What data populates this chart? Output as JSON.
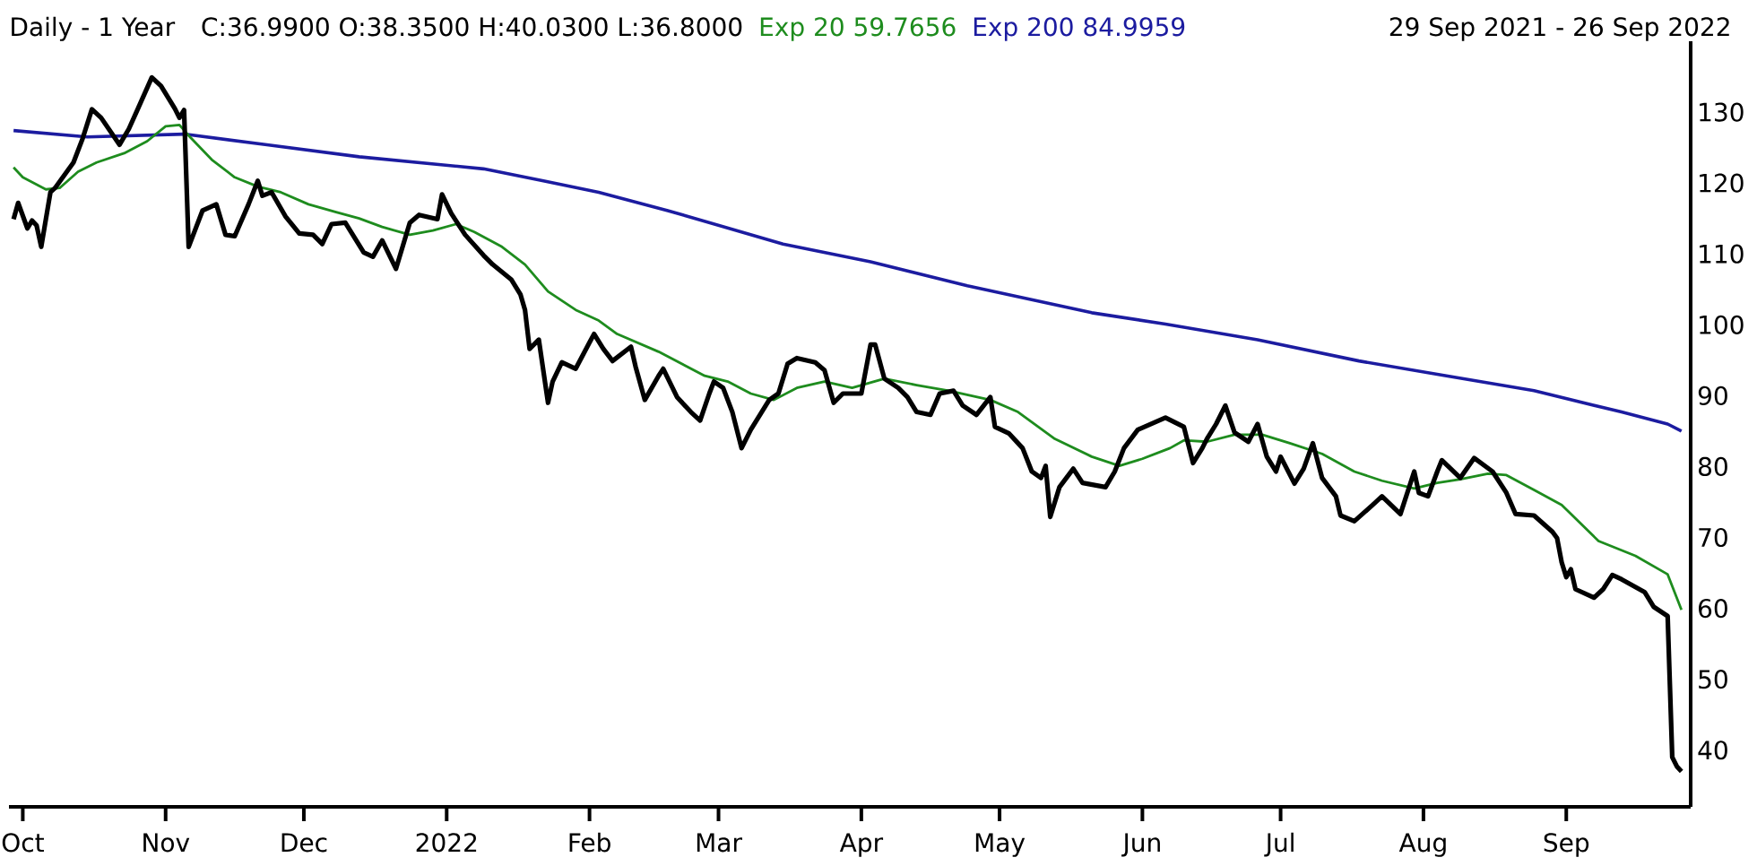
{
  "chart_data": {
    "type": "line",
    "title": "Daily - 1 Year",
    "subtitle": "C:36.9900 O:38.3500 H:40.0300 L:36.8000",
    "annotations": [
      "29 Sep 2021 - 26 Sep 2022"
    ],
    "legend": "top",
    "xlim": [
      "2021-09-28",
      "2022-09-28"
    ],
    "xticks": [
      {
        "value": "2021-10-01",
        "label": "Oct"
      },
      {
        "value": "2021-11-01",
        "label": "Nov"
      },
      {
        "value": "2021-12-01",
        "label": "Dec"
      },
      {
        "value": "2022-01-01",
        "label": "2022"
      },
      {
        "value": "2022-02-01",
        "label": "Feb"
      },
      {
        "value": "2022-03-01",
        "label": "Mar"
      },
      {
        "value": "2022-04-01",
        "label": "Apr"
      },
      {
        "value": "2022-05-01",
        "label": "May"
      },
      {
        "value": "2022-06-01",
        "label": "Jun"
      },
      {
        "value": "2022-07-01",
        "label": "Jul"
      },
      {
        "value": "2022-08-01",
        "label": "Aug"
      },
      {
        "value": "2022-09-01",
        "label": "Sep"
      }
    ],
    "ylim": [
      32,
      140
    ],
    "yticks": [
      40,
      50,
      60,
      70,
      80,
      90,
      100,
      110,
      120,
      130
    ],
    "series": [
      {
        "color": "#000000",
        "x": [
          "2021-09-29",
          "2021-09-30",
          "2021-10-02",
          "2021-10-03",
          "2021-10-04",
          "2021-10-05",
          "2021-10-07",
          "2021-10-08",
          "2021-10-12",
          "2021-10-14",
          "2021-10-16",
          "2021-10-18",
          "2021-10-22",
          "2021-10-24",
          "2021-10-26",
          "2021-10-29",
          "2021-10-31",
          "2021-11-03",
          "2021-11-04",
          "2021-11-05",
          "2021-11-06",
          "2021-11-09",
          "2021-11-12",
          "2021-11-14",
          "2021-11-16",
          "2021-11-19",
          "2021-11-21",
          "2021-11-22",
          "2021-11-24",
          "2021-11-27",
          "2021-11-30",
          "2021-12-03",
          "2021-12-05",
          "2021-12-07",
          "2021-12-10",
          "2021-12-14",
          "2021-12-16",
          "2021-12-18",
          "2021-12-21",
          "2021-12-24",
          "2021-12-26",
          "2021-12-30",
          "2021-12-31",
          "2022-01-02",
          "2022-01-05",
          "2022-01-09",
          "2022-01-11",
          "2022-01-15",
          "2022-01-17",
          "2022-01-18",
          "2022-01-19",
          "2022-01-21",
          "2022-01-23",
          "2022-01-24",
          "2022-01-26",
          "2022-01-29",
          "2022-02-01",
          "2022-02-02",
          "2022-02-04",
          "2022-02-06",
          "2022-02-10",
          "2022-02-11",
          "2022-02-13",
          "2022-02-16",
          "2022-02-17",
          "2022-02-20",
          "2022-02-23",
          "2022-02-25",
          "2022-02-27",
          "2022-02-28",
          "2022-03-02",
          "2022-03-04",
          "2022-03-06",
          "2022-03-08",
          "2022-03-12",
          "2022-03-14",
          "2022-03-16",
          "2022-03-18",
          "2022-03-22",
          "2022-03-24",
          "2022-03-26",
          "2022-03-28",
          "2022-04-01",
          "2022-04-03",
          "2022-04-04",
          "2022-04-06",
          "2022-04-09",
          "2022-04-11",
          "2022-04-13",
          "2022-04-16",
          "2022-04-18",
          "2022-04-21",
          "2022-04-23",
          "2022-04-26",
          "2022-04-29",
          "2022-04-30",
          "2022-05-03",
          "2022-05-06",
          "2022-05-08",
          "2022-05-10",
          "2022-05-11",
          "2022-05-12",
          "2022-05-14",
          "2022-05-17",
          "2022-05-19",
          "2022-05-24",
          "2022-05-26",
          "2022-05-28",
          "2022-05-31",
          "2022-06-06",
          "2022-06-10",
          "2022-06-12",
          "2022-06-14",
          "2022-06-15",
          "2022-06-17",
          "2022-06-19",
          "2022-06-21",
          "2022-06-24",
          "2022-06-26",
          "2022-06-28",
          "2022-06-30",
          "2022-07-01",
          "2022-07-04",
          "2022-07-06",
          "2022-07-08",
          "2022-07-10",
          "2022-07-13",
          "2022-07-14",
          "2022-07-17",
          "2022-07-21",
          "2022-07-23",
          "2022-07-27",
          "2022-07-30",
          "2022-07-31",
          "2022-08-02",
          "2022-08-04",
          "2022-08-05",
          "2022-08-09",
          "2022-08-12",
          "2022-08-16",
          "2022-08-19",
          "2022-08-21",
          "2022-08-25",
          "2022-08-29",
          "2022-08-30",
          "2022-08-31",
          "2022-09-01",
          "2022-09-02",
          "2022-09-03",
          "2022-09-07",
          "2022-09-09",
          "2022-09-11",
          "2022-09-13",
          "2022-09-18",
          "2022-09-20",
          "2022-09-23",
          "2022-09-24",
          "2022-09-25",
          "2022-09-26"
        ],
        "values": [
          114.9,
          117.2,
          113.6,
          114.7,
          114.0,
          111.0,
          118.7,
          119.3,
          122.9,
          126.3,
          130.4,
          129.2,
          125.4,
          127.6,
          130.5,
          134.9,
          133.7,
          130.5,
          129.2,
          130.3,
          111.0,
          116.1,
          117.0,
          112.7,
          112.5,
          117.0,
          120.3,
          118.2,
          118.7,
          115.3,
          112.9,
          112.7,
          111.4,
          114.2,
          114.4,
          110.2,
          109.6,
          111.9,
          107.9,
          114.4,
          115.5,
          114.9,
          118.4,
          115.7,
          112.7,
          109.8,
          108.5,
          106.4,
          104.3,
          102.1,
          96.6,
          97.9,
          89.0,
          92.0,
          94.7,
          93.8,
          97.5,
          98.7,
          96.6,
          94.9,
          96.9,
          94.1,
          89.4,
          92.8,
          93.8,
          89.8,
          87.7,
          86.5,
          90.3,
          92.0,
          91.1,
          87.7,
          82.6,
          85.2,
          89.4,
          90.3,
          94.5,
          95.3,
          94.7,
          93.6,
          89.0,
          90.3,
          90.3,
          97.2,
          97.2,
          92.4,
          91.1,
          89.8,
          87.7,
          87.3,
          90.3,
          90.7,
          88.6,
          87.3,
          89.8,
          85.6,
          84.7,
          82.6,
          79.3,
          78.4,
          80.1,
          72.9,
          77.1,
          79.7,
          77.7,
          77.1,
          79.3,
          82.6,
          85.2,
          86.9,
          85.6,
          80.5,
          82.6,
          83.9,
          86.0,
          88.6,
          84.8,
          83.5,
          86.0,
          81.4,
          79.3,
          81.4,
          77.6,
          79.7,
          83.3,
          78.4,
          75.8,
          73.1,
          72.3,
          74.6,
          75.8,
          73.3,
          79.3,
          76.3,
          75.8,
          79.3,
          80.9,
          78.4,
          81.2,
          79.3,
          76.3,
          73.3,
          73.1,
          70.8,
          69.9,
          66.5,
          64.4,
          65.5,
          62.7,
          61.5,
          62.7,
          64.7,
          64.1,
          62.3,
          60.2,
          58.9,
          39.0,
          37.7,
          37.0
        ]
      },
      {
        "name": "Exp 20 59.7656",
        "color": "#1e8c1e",
        "x": [
          "2021-09-29",
          "2021-10-01",
          "2021-10-06",
          "2021-10-09",
          "2021-10-13",
          "2021-10-17",
          "2021-10-23",
          "2021-10-28",
          "2021-11-01",
          "2021-11-04",
          "2021-11-06",
          "2021-11-11",
          "2021-11-16",
          "2021-11-21",
          "2021-11-26",
          "2021-12-02",
          "2021-12-08",
          "2021-12-13",
          "2021-12-18",
          "2021-12-24",
          "2021-12-29",
          "2022-01-03",
          "2022-01-07",
          "2022-01-13",
          "2022-01-18",
          "2022-01-23",
          "2022-01-29",
          "2022-02-03",
          "2022-02-07",
          "2022-02-16",
          "2022-02-26",
          "2022-03-03",
          "2022-03-08",
          "2022-03-13",
          "2022-03-18",
          "2022-03-24",
          "2022-03-30",
          "2022-04-06",
          "2022-04-13",
          "2022-04-20",
          "2022-04-29",
          "2022-05-05",
          "2022-05-13",
          "2022-05-21",
          "2022-05-27",
          "2022-06-01",
          "2022-06-07",
          "2022-06-10",
          "2022-06-15",
          "2022-06-21",
          "2022-06-27",
          "2022-07-03",
          "2022-07-10",
          "2022-07-17",
          "2022-07-23",
          "2022-07-30",
          "2022-08-04",
          "2022-08-09",
          "2022-08-15",
          "2022-08-19",
          "2022-08-25",
          "2022-08-31",
          "2022-09-08",
          "2022-09-16",
          "2022-09-23",
          "2022-09-26"
        ],
        "values": [
          122.2,
          120.8,
          119.1,
          119.3,
          121.6,
          122.9,
          124.2,
          125.9,
          128.0,
          128.2,
          126.7,
          123.3,
          120.8,
          119.5,
          118.7,
          117.0,
          115.9,
          115.0,
          113.8,
          112.7,
          113.3,
          114.2,
          113.1,
          111.0,
          108.5,
          104.7,
          102.1,
          100.6,
          98.7,
          96.2,
          92.8,
          92.0,
          90.3,
          89.4,
          91.1,
          92.0,
          91.1,
          92.4,
          91.5,
          90.7,
          89.4,
          87.7,
          83.9,
          81.4,
          80.1,
          81.1,
          82.6,
          83.7,
          83.5,
          84.5,
          84.5,
          83.3,
          81.8,
          79.3,
          78.0,
          76.9,
          77.7,
          78.2,
          79.0,
          78.8,
          76.7,
          74.6,
          69.5,
          67.4,
          64.8,
          59.8
        ]
      },
      {
        "name": "Exp 200 84.9959",
        "color": "#1c1ca0",
        "x": [
          "2021-09-29",
          "2021-10-15",
          "2021-11-05",
          "2021-11-23",
          "2021-12-13",
          "2022-01-09",
          "2022-01-22",
          "2022-02-03",
          "2022-02-18",
          "2022-03-15",
          "2022-04-03",
          "2022-04-24",
          "2022-05-21",
          "2022-06-06",
          "2022-06-26",
          "2022-07-18",
          "2022-08-06",
          "2022-08-25",
          "2022-09-13",
          "2022-09-23",
          "2022-09-26"
        ],
        "values": [
          127.4,
          126.5,
          126.9,
          125.4,
          123.7,
          122.0,
          120.3,
          118.7,
          116.1,
          111.4,
          108.9,
          105.5,
          101.7,
          100.1,
          97.9,
          94.9,
          92.8,
          90.7,
          87.7,
          86.0,
          85.0
        ]
      }
    ]
  }
}
